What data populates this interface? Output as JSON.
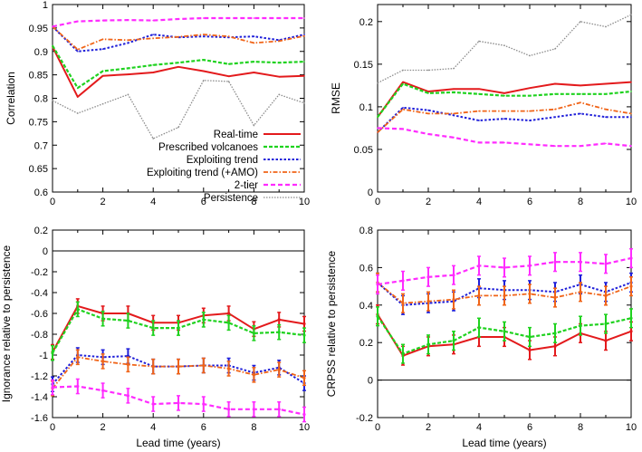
{
  "colors": {
    "real_time": "#e31a1c",
    "prescribed_volcanoes": "#1fd21f",
    "exploiting_trend": "#1f1fd9",
    "exploiting_trend_amo": "#f06418",
    "two_tier": "#ff2bff",
    "persistence": "#8c8c8c"
  },
  "legend": {
    "entries": [
      {
        "key": "real_time",
        "label": "Real-time"
      },
      {
        "key": "prescribed_volcanoes",
        "label": "Prescribed volcanoes"
      },
      {
        "key": "exploiting_trend",
        "label": "Exploiting trend"
      },
      {
        "key": "exploiting_trend_amo",
        "label": "Exploiting trend (+AMO)"
      },
      {
        "key": "two_tier",
        "label": "2-tier"
      },
      {
        "key": "persistence",
        "label": "Persistence"
      }
    ]
  },
  "chart_data": [
    {
      "id": "correlation",
      "type": "line",
      "title": "",
      "xlabel": "",
      "ylabel": "Correlation",
      "xlim": [
        0,
        10
      ],
      "ylim": [
        0.6,
        1.0
      ],
      "xticks": [
        "0",
        "2",
        "4",
        "6",
        "8",
        "10"
      ],
      "yticks": [
        "0.6",
        "0.65",
        "0.7",
        "0.75",
        "0.8",
        "0.85",
        "0.9",
        "0.95",
        "1"
      ],
      "x": [
        0,
        1,
        2,
        3,
        4,
        5,
        6,
        7,
        8,
        9,
        10
      ],
      "series": [
        {
          "key": "persistence",
          "name": "Persistence",
          "values": [
            0.795,
            0.768,
            0.788,
            0.808,
            0.714,
            0.738,
            0.838,
            0.836,
            0.742,
            0.808,
            0.79
          ]
        },
        {
          "key": "real_time",
          "name": "Real-time",
          "values": [
            0.91,
            0.803,
            0.848,
            0.851,
            0.855,
            0.867,
            0.858,
            0.847,
            0.855,
            0.846,
            0.848
          ]
        },
        {
          "key": "prescribed_volcanoes",
          "name": "Prescribed volcanoes",
          "values": [
            0.912,
            0.822,
            0.858,
            0.864,
            0.871,
            0.876,
            0.882,
            0.873,
            0.878,
            0.876,
            0.878
          ]
        },
        {
          "key": "exploiting_trend",
          "name": "Exploiting trend",
          "values": [
            0.953,
            0.9,
            0.905,
            0.918,
            0.936,
            0.93,
            0.932,
            0.93,
            0.932,
            0.924,
            0.936
          ]
        },
        {
          "key": "exploiting_trend_amo",
          "name": "Exploiting trend (+AMO)",
          "values": [
            0.953,
            0.904,
            0.926,
            0.924,
            0.928,
            0.931,
            0.936,
            0.932,
            0.918,
            0.922,
            0.933
          ]
        },
        {
          "key": "two_tier",
          "name": "2-tier",
          "values": [
            0.953,
            0.964,
            0.966,
            0.967,
            0.966,
            0.969,
            0.971,
            0.971,
            0.971,
            0.971,
            0.971
          ]
        }
      ]
    },
    {
      "id": "rmse",
      "type": "line",
      "title": "",
      "xlabel": "",
      "ylabel": "RMSE",
      "xlim": [
        0,
        10
      ],
      "ylim": [
        0,
        0.22
      ],
      "xticks": [
        "0",
        "2",
        "4",
        "6",
        "8",
        "10"
      ],
      "yticks": [
        "0",
        "0.05",
        "0.1",
        "0.15",
        "0.2"
      ],
      "x": [
        0,
        1,
        2,
        3,
        4,
        5,
        6,
        7,
        8,
        9,
        10
      ],
      "series": [
        {
          "key": "persistence",
          "name": "Persistence",
          "values": [
            0.128,
            0.143,
            0.143,
            0.145,
            0.177,
            0.172,
            0.16,
            0.168,
            0.2,
            0.194,
            0.208
          ]
        },
        {
          "key": "real_time",
          "name": "Real-time",
          "values": [
            0.088,
            0.129,
            0.118,
            0.121,
            0.121,
            0.116,
            0.122,
            0.127,
            0.125,
            0.127,
            0.129
          ]
        },
        {
          "key": "prescribed_volcanoes",
          "name": "Prescribed volcanoes",
          "values": [
            0.088,
            0.127,
            0.116,
            0.117,
            0.115,
            0.113,
            0.113,
            0.115,
            0.115,
            0.115,
            0.118
          ]
        },
        {
          "key": "exploiting_trend",
          "name": "Exploiting trend",
          "values": [
            0.07,
            0.099,
            0.096,
            0.09,
            0.084,
            0.086,
            0.084,
            0.088,
            0.092,
            0.088,
            0.088
          ]
        },
        {
          "key": "exploiting_trend_amo",
          "name": "Exploiting trend (+AMO)",
          "values": [
            0.07,
            0.097,
            0.092,
            0.092,
            0.095,
            0.095,
            0.095,
            0.097,
            0.105,
            0.097,
            0.092
          ]
        },
        {
          "key": "two_tier",
          "name": "2-tier",
          "values": [
            0.075,
            0.074,
            0.068,
            0.064,
            0.058,
            0.058,
            0.056,
            0.054,
            0.054,
            0.057,
            0.054
          ]
        }
      ]
    },
    {
      "id": "ignorance",
      "type": "line",
      "title": "",
      "xlabel": "Lead time (years)",
      "ylabel": "Ignorance relative to persistence",
      "xlim": [
        0,
        10
      ],
      "ylim": [
        -1.6,
        0.2
      ],
      "xticks": [
        "0",
        "2",
        "4",
        "6",
        "8",
        "10"
      ],
      "yticks": [
        "-1.6",
        "-1.4",
        "-1.2",
        "-1",
        "-0.8",
        "-0.6",
        "-0.4",
        "-0.2",
        "0",
        "0.2"
      ],
      "reference_line": 0,
      "error_half_width": 0.07,
      "x": [
        0,
        1,
        2,
        3,
        4,
        5,
        6,
        7,
        8,
        9,
        10
      ],
      "series": [
        {
          "key": "real_time",
          "name": "Real-time",
          "values": [
            -0.97,
            -0.53,
            -0.6,
            -0.6,
            -0.69,
            -0.69,
            -0.62,
            -0.6,
            -0.75,
            -0.66,
            -0.7
          ]
        },
        {
          "key": "prescribed_volcanoes",
          "name": "Prescribed volcanoes",
          "values": [
            -0.98,
            -0.56,
            -0.65,
            -0.67,
            -0.74,
            -0.74,
            -0.66,
            -0.69,
            -0.79,
            -0.78,
            -0.81
          ]
        },
        {
          "key": "exploiting_trend",
          "name": "Exploiting trend",
          "values": [
            -1.28,
            -1.0,
            -1.02,
            -1.01,
            -1.11,
            -1.11,
            -1.1,
            -1.1,
            -1.17,
            -1.12,
            -1.27
          ]
        },
        {
          "key": "exploiting_trend_amo",
          "name": "Exploiting trend (+AMO)",
          "values": [
            -1.32,
            -1.02,
            -1.06,
            -1.09,
            -1.11,
            -1.11,
            -1.1,
            -1.13,
            -1.19,
            -1.14,
            -1.22
          ]
        },
        {
          "key": "two_tier",
          "name": "2-tier",
          "values": [
            -1.31,
            -1.3,
            -1.34,
            -1.39,
            -1.47,
            -1.46,
            -1.47,
            -1.52,
            -1.52,
            -1.52,
            -1.57
          ]
        }
      ]
    },
    {
      "id": "crpss",
      "type": "line",
      "title": "",
      "xlabel": "Lead time (years)",
      "ylabel": "CRPSS relative to persistence",
      "xlim": [
        0,
        10
      ],
      "ylim": [
        -0.2,
        0.8
      ],
      "xticks": [
        "0",
        "2",
        "4",
        "6",
        "8",
        "10"
      ],
      "yticks": [
        "-0.2",
        "0",
        "0.2",
        "0.4",
        "0.6",
        "0.8"
      ],
      "reference_line": 0,
      "error_half_width": 0.05,
      "x": [
        0,
        1,
        2,
        3,
        4,
        5,
        6,
        7,
        8,
        9,
        10
      ],
      "series": [
        {
          "key": "real_time",
          "name": "Real-time",
          "values": [
            0.35,
            0.13,
            0.18,
            0.19,
            0.23,
            0.23,
            0.16,
            0.18,
            0.25,
            0.21,
            0.26
          ]
        },
        {
          "key": "prescribed_volcanoes",
          "name": "Prescribed volcanoes",
          "values": [
            0.34,
            0.14,
            0.19,
            0.21,
            0.28,
            0.26,
            0.23,
            0.25,
            0.29,
            0.3,
            0.33
          ]
        },
        {
          "key": "exploiting_trend",
          "name": "Exploiting trend",
          "values": [
            0.52,
            0.4,
            0.41,
            0.42,
            0.49,
            0.48,
            0.48,
            0.47,
            0.51,
            0.47,
            0.52
          ]
        },
        {
          "key": "exploiting_trend_amo",
          "name": "Exploiting trend (+AMO)",
          "values": [
            0.52,
            0.41,
            0.42,
            0.43,
            0.45,
            0.45,
            0.46,
            0.44,
            0.47,
            0.45,
            0.5
          ]
        },
        {
          "key": "two_tier",
          "name": "2-tier",
          "values": [
            0.51,
            0.53,
            0.55,
            0.56,
            0.61,
            0.6,
            0.61,
            0.63,
            0.63,
            0.62,
            0.65
          ]
        }
      ]
    }
  ]
}
